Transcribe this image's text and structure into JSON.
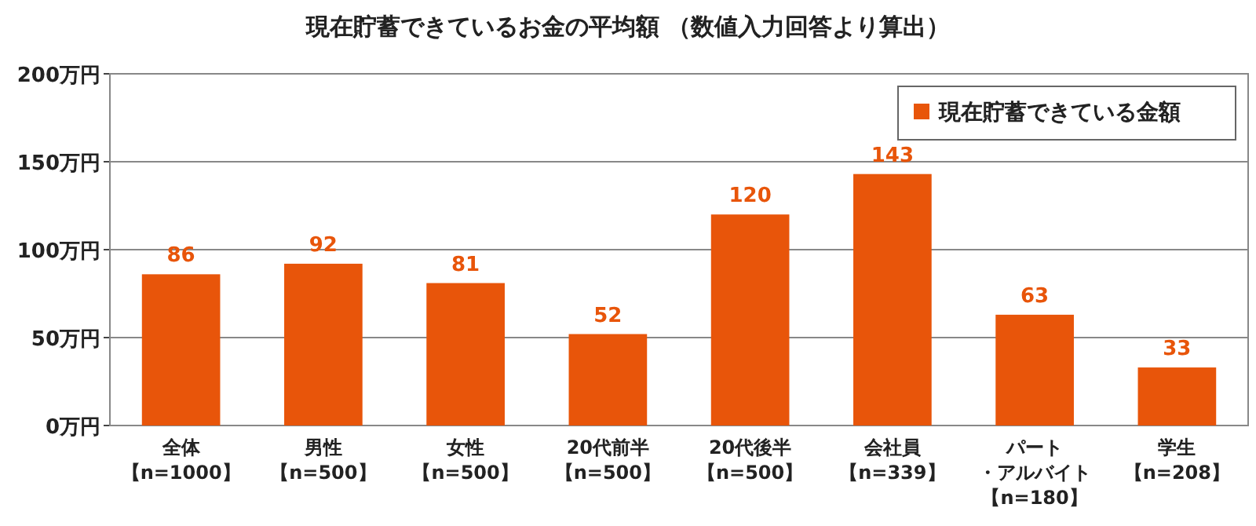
{
  "chart_data": {
    "type": "bar",
    "title": "現在貯蓄できているお金の平均額 （数値入力回答より算出）",
    "categories": [
      "全体【n=1000】",
      "男性【n=500】",
      "女性【n=500】",
      "20代前半【n=500】",
      "20代後半【n=500】",
      "会社員【n=339】",
      "パート・アルバイト【n=180】",
      "学生【n=208】"
    ],
    "series": [
      {
        "name": "現在貯蓄できている金額",
        "color": "#e8550a",
        "values": [
          86,
          92,
          81,
          52,
          120,
          143,
          63,
          33
        ]
      }
    ],
    "ylim": [
      0,
      200
    ],
    "yticks": [
      {
        "value": 0,
        "label": "0万円"
      },
      {
        "value": 50,
        "label": "50万円"
      },
      {
        "value": 100,
        "label": "100万円"
      },
      {
        "value": 150,
        "label": "150万円"
      },
      {
        "value": 200,
        "label": "200万円"
      }
    ],
    "grid": "y",
    "legend": "top right",
    "data_labels": true
  }
}
